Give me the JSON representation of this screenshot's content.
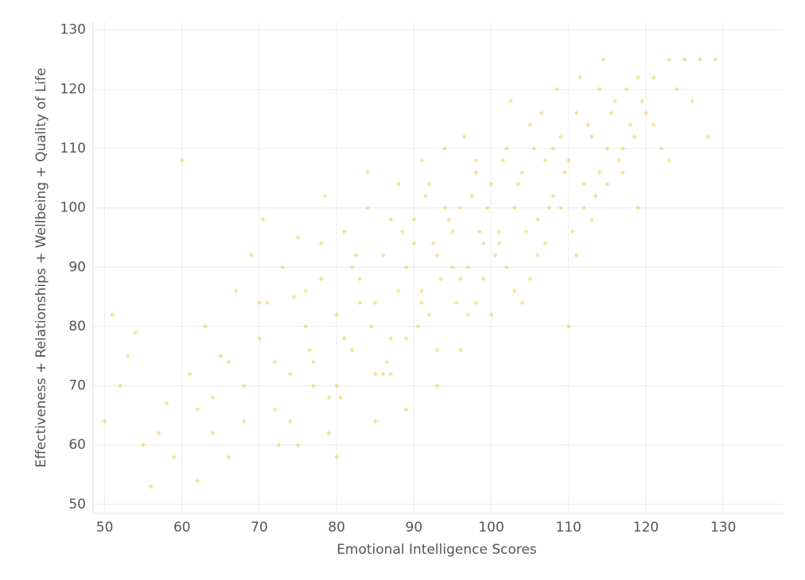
{
  "chart_data": {
    "type": "scatter",
    "x_label": "Emotional Intelligence Scores",
    "y_label": "Effectiveness + Relationships + Wellbeing + Quality of Life",
    "color": "#e6c229",
    "grid": true,
    "xlim": [
      48.5,
      137.8
    ],
    "ylim": [
      48.5,
      131.3
    ],
    "xticks": [
      50,
      60,
      70,
      80,
      90,
      100,
      110,
      120,
      130
    ],
    "yticks": [
      50,
      60,
      70,
      80,
      90,
      100,
      110,
      120,
      130
    ],
    "x": [
      50,
      51,
      52,
      53,
      54,
      55,
      56,
      57,
      58,
      59,
      60,
      61,
      62,
      63,
      64,
      65,
      66,
      67,
      68,
      69,
      70,
      71,
      72,
      73,
      74,
      75,
      76,
      77,
      78,
      79,
      70.5,
      72.5,
      74.5,
      76.5,
      78.5,
      80.5,
      82.5,
      84.5,
      86.5,
      88.5,
      80,
      81,
      82,
      83,
      84,
      85,
      86,
      87,
      88,
      89,
      80,
      82,
      84,
      86,
      88,
      90,
      92,
      94,
      96,
      98,
      90,
      91,
      92,
      93,
      94,
      95,
      96,
      97,
      98,
      99,
      90.5,
      91.5,
      92.5,
      93.5,
      94.5,
      95.5,
      96.5,
      97.5,
      98.5,
      99.5,
      100,
      101,
      102,
      103,
      104,
      105,
      106,
      107,
      108,
      109,
      100.5,
      101.5,
      102.5,
      103.5,
      104.5,
      105.5,
      106.5,
      107.5,
      108.5,
      109.5,
      110,
      111,
      112,
      113,
      114,
      115,
      116,
      117,
      118,
      119,
      110.5,
      111.5,
      112.5,
      113.5,
      114.5,
      115.5,
      116.5,
      117.5,
      118.5,
      119.5,
      120,
      121,
      122,
      123,
      124,
      125,
      126,
      127,
      128,
      129,
      85,
      87,
      89,
      91,
      93,
      95,
      97,
      99,
      101,
      103,
      75,
      77,
      79,
      81,
      83,
      85,
      87,
      89,
      91,
      93,
      105,
      107,
      109,
      111,
      113,
      115,
      117,
      119,
      121,
      123,
      62,
      64,
      66,
      68,
      70,
      72,
      74,
      76,
      78,
      80,
      96,
      98,
      100,
      102,
      104,
      106,
      108,
      110,
      112,
      114
    ],
    "y": [
      64,
      82,
      70,
      75,
      79,
      60,
      53,
      62,
      67,
      58,
      108,
      72,
      66,
      80,
      62,
      75,
      58,
      86,
      70,
      92,
      78,
      84,
      66,
      90,
      72,
      95,
      80,
      70,
      88,
      62,
      98,
      60,
      85,
      76,
      102,
      68,
      92,
      80,
      74,
      96,
      82,
      96,
      76,
      88,
      100,
      84,
      92,
      78,
      104,
      90,
      70,
      90,
      106,
      72,
      86,
      94,
      82,
      100,
      88,
      108,
      98,
      86,
      104,
      92,
      110,
      96,
      100,
      90,
      106,
      94,
      80,
      102,
      94,
      88,
      98,
      84,
      112,
      102,
      96,
      100,
      104,
      96,
      110,
      100,
      106,
      114,
      98,
      108,
      102,
      112,
      92,
      108,
      118,
      104,
      96,
      110,
      116,
      100,
      120,
      106,
      108,
      116,
      104,
      112,
      120,
      110,
      118,
      106,
      114,
      122,
      96,
      122,
      114,
      102,
      125,
      116,
      108,
      120,
      112,
      118,
      116,
      122,
      110,
      125,
      120,
      125,
      118,
      125,
      112,
      125,
      64,
      72,
      78,
      84,
      76,
      90,
      82,
      88,
      94,
      86,
      60,
      74,
      68,
      78,
      84,
      72,
      98,
      66,
      108,
      70,
      88,
      94,
      100,
      92,
      98,
      104,
      110,
      100,
      114,
      108,
      54,
      68,
      74,
      64,
      84,
      74,
      64,
      86,
      94,
      58,
      76,
      84,
      82,
      90,
      84,
      92,
      110,
      80,
      100,
      106
    ]
  }
}
